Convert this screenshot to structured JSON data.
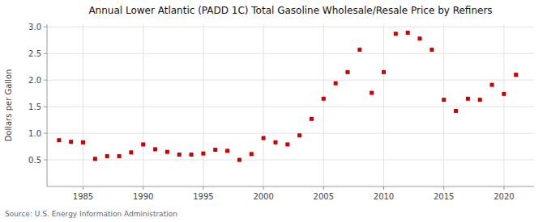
{
  "chart_data": {
    "type": "scatter",
    "title": "Annual Lower Atlantic (PADD 1C) Total Gasoline Wholesale/Resale Price by Refiners",
    "ylabel": "Dollars per Gallon",
    "source": "Source: U.S. Energy Information Administration",
    "x": [
      1983,
      1984,
      1985,
      1986,
      1987,
      1988,
      1989,
      1990,
      1991,
      1992,
      1993,
      1994,
      1995,
      1996,
      1997,
      1998,
      1999,
      2000,
      2001,
      2002,
      2003,
      2004,
      2005,
      2006,
      2007,
      2008,
      2009,
      2010,
      2011,
      2012,
      2013,
      2014,
      2015,
      2016,
      2017,
      2018,
      2019,
      2020,
      2021
    ],
    "values": [
      0.87,
      0.84,
      0.83,
      0.52,
      0.57,
      0.57,
      0.64,
      0.79,
      0.7,
      0.65,
      0.6,
      0.6,
      0.62,
      0.69,
      0.67,
      0.5,
      0.61,
      0.91,
      0.83,
      0.79,
      0.96,
      1.27,
      1.65,
      1.94,
      2.15,
      2.57,
      1.76,
      2.15,
      2.87,
      2.89,
      2.78,
      2.57,
      1.63,
      1.42,
      1.65,
      1.63,
      1.91,
      1.74,
      2.1
    ],
    "color": "#cc0000",
    "marker": "square",
    "xlim": [
      1982,
      2022.5
    ],
    "ylim": [
      0.0,
      3.05
    ],
    "xticks": [
      1985,
      1990,
      1995,
      2000,
      2005,
      2010,
      2015,
      2020
    ],
    "yticks": [
      0.5,
      {
        "value": 1.0,
        "label": "1.0"
      },
      1.5,
      {
        "value": 2.0,
        "label": "2.0"
      },
      2.5,
      {
        "value": 3.0,
        "label": "3.0"
      }
    ],
    "grid": true
  }
}
